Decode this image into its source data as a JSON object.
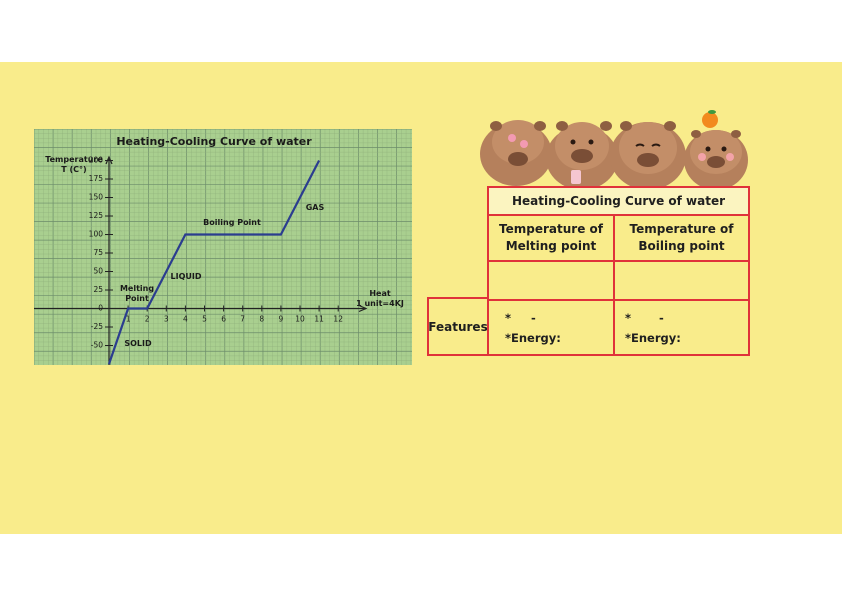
{
  "chart_data": {
    "type": "line",
    "title": "Heating-Cooling Curve of water",
    "ylabel": "Temperature T (C°)",
    "ylabel_lines": [
      "Temperature",
      "T (C°)"
    ],
    "xlabel": "Heat 1 unit=4KJ",
    "xlabel_lines": [
      "Heat",
      "1 unit=4KJ"
    ],
    "x_ticks": [
      "1",
      "2",
      "3",
      "4",
      "5",
      "6",
      "7",
      "8",
      "9",
      "10",
      "11",
      "12"
    ],
    "y_ticks": [
      "200",
      "175",
      "150",
      "125",
      "100",
      "75",
      "50",
      "25",
      "0",
      "-25",
      "-50"
    ],
    "xlim": [
      0,
      12.5
    ],
    "ylim": [
      -75,
      225
    ],
    "grid": true,
    "x": [
      0,
      1,
      2,
      4,
      9,
      11
    ],
    "y": [
      -75,
      0,
      0,
      100,
      100,
      200
    ],
    "annotations": {
      "melting": [
        "Melting",
        "Point"
      ],
      "solid": "SOLID",
      "liquid": "LIQUID",
      "boiling": "Boiling Point",
      "gas": "GAS"
    },
    "colors": {
      "line": "#2b3d8f",
      "background": "#a9cf8f",
      "grid_major": "#6c8c6a",
      "grid_minor": "#8fb07b"
    }
  },
  "table": {
    "title": "Heating-Cooling Curve of water",
    "col1_line1": "Temperature of",
    "col1_line2": "Melting point",
    "col2_line1": "Temperature of",
    "col2_line2": "Boiling point",
    "row_label": "Features",
    "cell1_line1": "*     -",
    "cell1_line2": "*Energy:",
    "cell2_line1": "*       -",
    "cell2_line2": "*Energy:"
  },
  "decoration": {
    "icon": "capybara-group-icon"
  },
  "colors": {
    "slide_background": "#f9ec8b",
    "table_border": "#e0323a"
  }
}
